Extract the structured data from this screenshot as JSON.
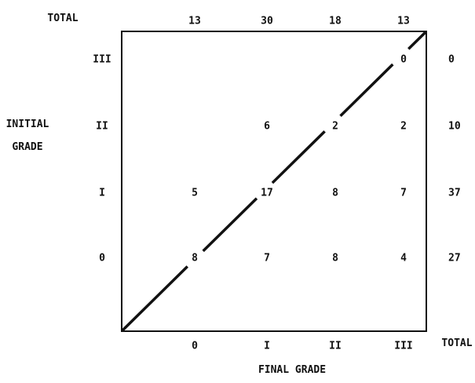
{
  "chart_data": {
    "type": "table",
    "title": "",
    "xlabel": "FINAL GRADE",
    "ylabel_line1": "INITIAL",
    "ylabel_line2": "GRADE",
    "x_categories": [
      "0",
      "I",
      "II",
      "III"
    ],
    "y_categories": [
      "0",
      "I",
      "II",
      "III"
    ],
    "total_label_top": "TOTAL",
    "total_label_right": "TOTAL",
    "column_totals": [
      "13",
      "30",
      "18",
      "13"
    ],
    "row_totals": [
      "27",
      "37",
      "10",
      "0"
    ],
    "cells": [
      {
        "row": "0",
        "col": "0",
        "value": "8"
      },
      {
        "row": "0",
        "col": "I",
        "value": "7"
      },
      {
        "row": "0",
        "col": "II",
        "value": "8"
      },
      {
        "row": "0",
        "col": "III",
        "value": "4"
      },
      {
        "row": "I",
        "col": "0",
        "value": "5"
      },
      {
        "row": "I",
        "col": "I",
        "value": "17"
      },
      {
        "row": "I",
        "col": "II",
        "value": "8"
      },
      {
        "row": "I",
        "col": "III",
        "value": "7"
      },
      {
        "row": "II",
        "col": "I",
        "value": "6"
      },
      {
        "row": "II",
        "col": "II",
        "value": "2"
      },
      {
        "row": "II",
        "col": "III",
        "value": "2"
      },
      {
        "row": "III",
        "col": "III",
        "value": "0"
      }
    ],
    "diagonal_line": true,
    "grid": false
  }
}
